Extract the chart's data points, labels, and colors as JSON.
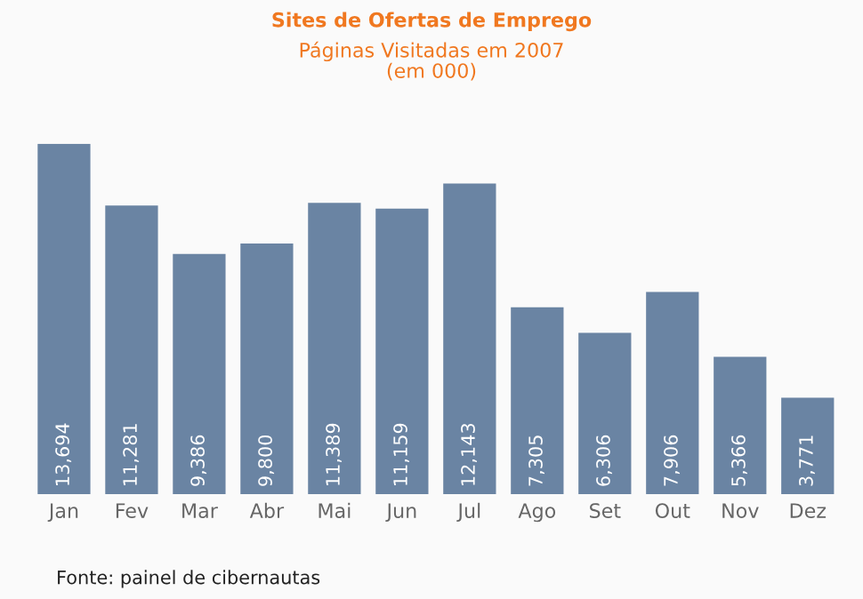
{
  "chart_data": {
    "type": "bar",
    "title": "Sites de Ofertas de Emprego",
    "subtitle": "Páginas Visitadas em 2007\n(em 000)",
    "categories": [
      "Jan",
      "Fev",
      "Mar",
      "Abr",
      "Mai",
      "Jun",
      "Jul",
      "Ago",
      "Set",
      "Out",
      "Nov",
      "Dez"
    ],
    "values": [
      13694,
      11281,
      9386,
      9800,
      11389,
      11159,
      12143,
      7305,
      6306,
      7906,
      5366,
      3771
    ],
    "value_labels": [
      "13,694",
      "11,281",
      "9,386",
      "9,800",
      "11,389",
      "11,159",
      "12,143",
      "7,305",
      "6,306",
      "7,906",
      "5,366",
      "3,771"
    ],
    "color": "#6a84a3",
    "annotations": [
      "Fonte: painel de cibernautas"
    ]
  }
}
